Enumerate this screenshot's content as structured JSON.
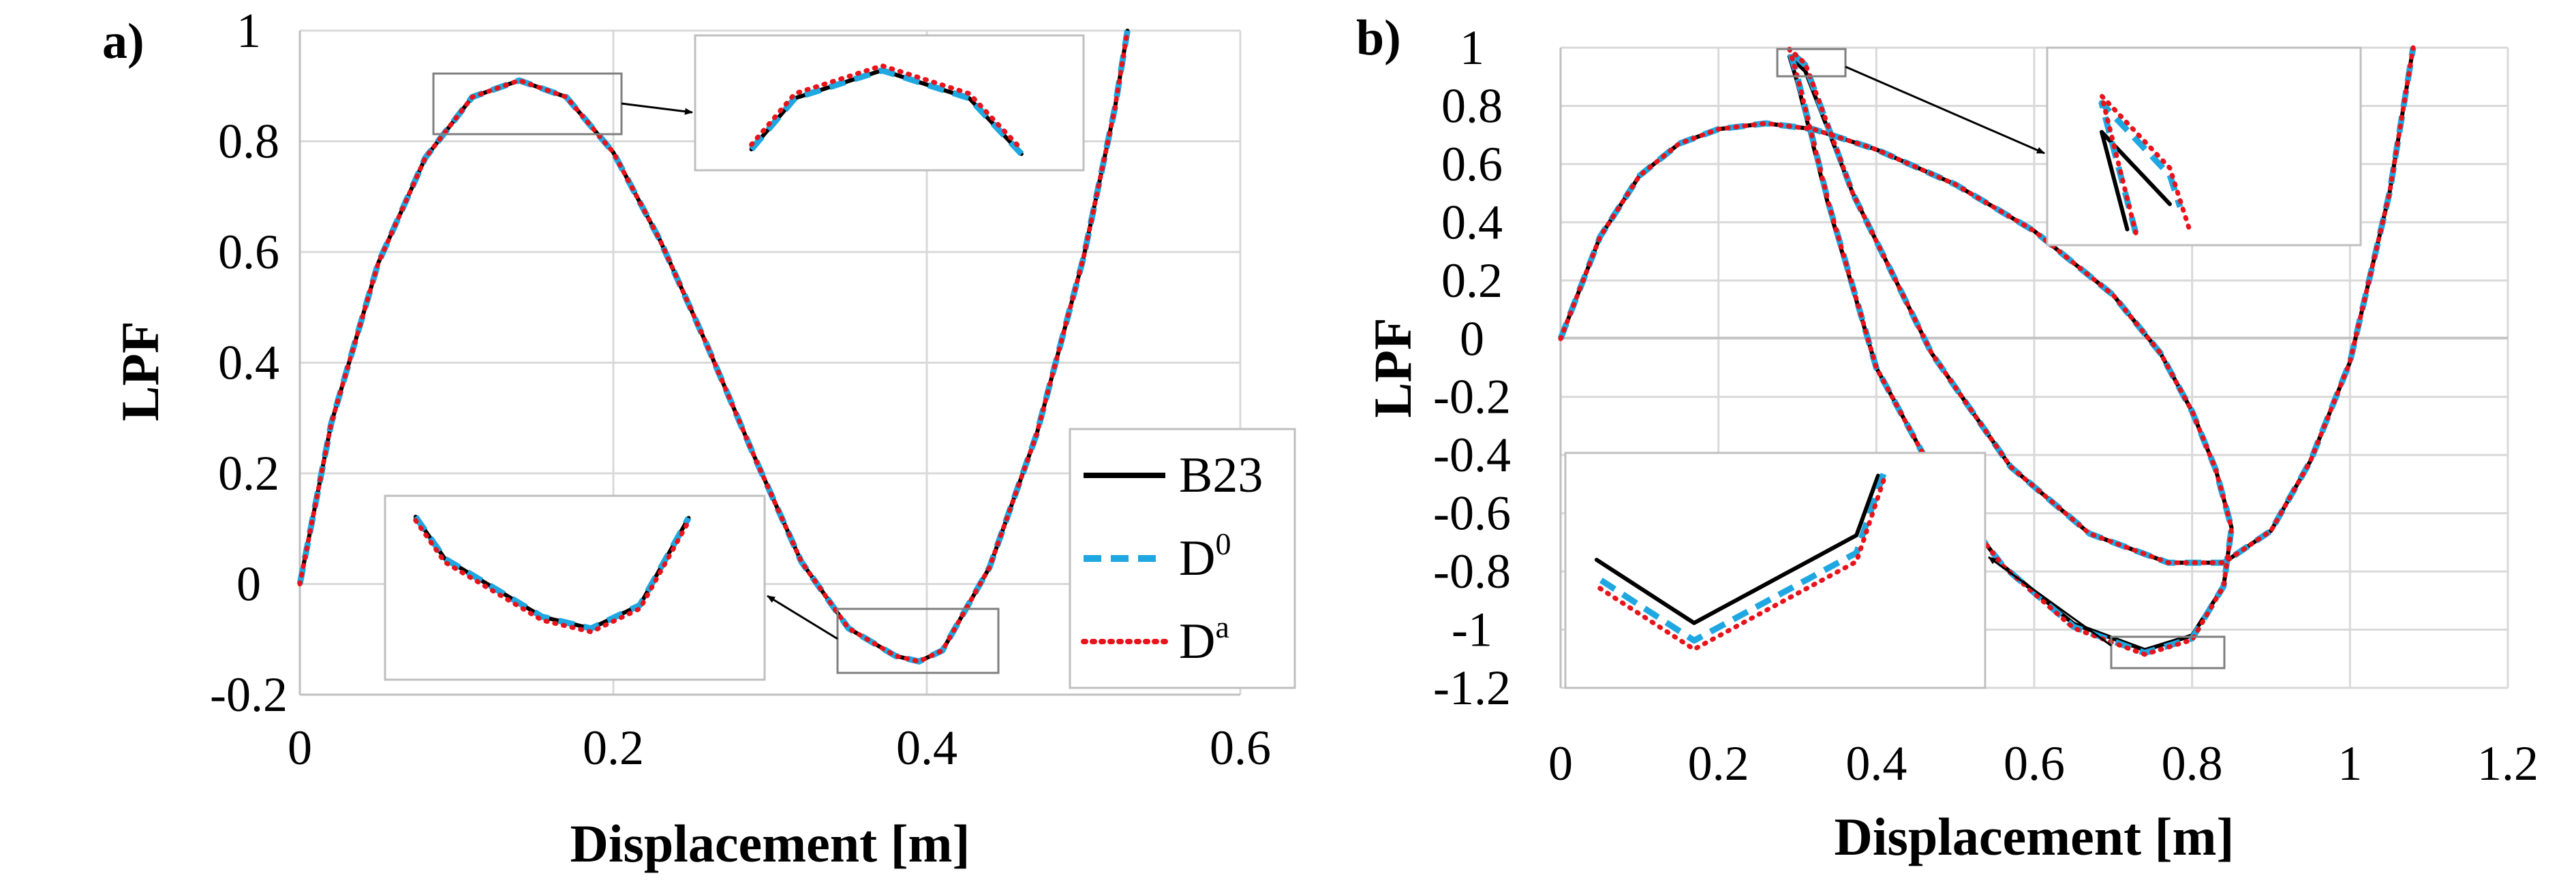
{
  "figure": {
    "description_free": true,
    "legend": [
      {
        "key": "B23",
        "label": "B23",
        "sup": "",
        "color": "#000000",
        "style": "solid"
      },
      {
        "key": "D0",
        "label": "D",
        "sup": "0",
        "color": "#1ea7e1",
        "style": "dashed"
      },
      {
        "key": "Da",
        "label": "D",
        "sup": "a",
        "color": "#e8131b",
        "style": "dotted"
      }
    ]
  },
  "chart_data": [
    {
      "panel_label": "a)",
      "type": "line",
      "xlabel": "Displacement  [m]",
      "ylabel": "LPF",
      "xlim": [
        0,
        0.6
      ],
      "ylim": [
        -0.2,
        1
      ],
      "xticks": [
        0,
        0.2,
        0.4,
        0.6
      ],
      "xtick_labels": [
        "0",
        "0.2",
        "0.4",
        "0.6"
      ],
      "yticks": [
        -0.2,
        0,
        0.2,
        0.4,
        0.6,
        0.8,
        1
      ],
      "ytick_labels": [
        "-0.2",
        "0",
        "0.2",
        "0.4",
        "0.6",
        "0.8",
        "1"
      ],
      "grid": true,
      "legend_position": "bottom-right",
      "series": [
        {
          "name": "B23",
          "x": [
            0,
            0.02,
            0.05,
            0.08,
            0.11,
            0.14,
            0.17,
            0.2,
            0.23,
            0.26,
            0.29,
            0.32,
            0.35,
            0.38,
            0.395,
            0.41,
            0.44,
            0.47,
            0.5,
            0.52,
            0.528
          ],
          "y": [
            0,
            0.29,
            0.58,
            0.77,
            0.88,
            0.91,
            0.88,
            0.78,
            0.62,
            0.43,
            0.23,
            0.04,
            -0.08,
            -0.13,
            -0.14,
            -0.12,
            0.03,
            0.27,
            0.59,
            0.86,
            1.0
          ]
        },
        {
          "name": "D0",
          "x": [
            0,
            0.02,
            0.05,
            0.08,
            0.11,
            0.14,
            0.17,
            0.2,
            0.23,
            0.26,
            0.29,
            0.32,
            0.35,
            0.38,
            0.395,
            0.41,
            0.44,
            0.47,
            0.5,
            0.52,
            0.528
          ],
          "y": [
            0,
            0.29,
            0.58,
            0.77,
            0.88,
            0.91,
            0.88,
            0.78,
            0.62,
            0.43,
            0.23,
            0.04,
            -0.08,
            -0.13,
            -0.14,
            -0.12,
            0.03,
            0.27,
            0.59,
            0.86,
            1.0
          ]
        },
        {
          "name": "Da",
          "x": [
            0,
            0.02,
            0.05,
            0.08,
            0.11,
            0.14,
            0.17,
            0.2,
            0.23,
            0.26,
            0.29,
            0.32,
            0.35,
            0.38,
            0.395,
            0.41,
            0.44,
            0.47,
            0.5,
            0.52,
            0.528
          ],
          "y": [
            0,
            0.29,
            0.58,
            0.77,
            0.88,
            0.91,
            0.88,
            0.78,
            0.62,
            0.43,
            0.23,
            0.04,
            -0.08,
            -0.13,
            -0.14,
            -0.12,
            0.03,
            0.27,
            0.59,
            0.86,
            1.0
          ]
        }
      ],
      "insets": [
        {
          "name": "peak",
          "region": {
            "x": [
              0.085,
              0.2
            ],
            "y": [
              0.82,
              0.93
            ]
          },
          "series_offsets": {
            "B23": 0,
            "D0": 0,
            "Da": 0.005
          }
        },
        {
          "name": "valley",
          "region": {
            "x": [
              0.34,
              0.44
            ],
            "y": [
              -0.17,
              -0.04
            ]
          },
          "series_offsets": {
            "B23": 0,
            "D0": 0,
            "Da": -0.003
          }
        }
      ]
    },
    {
      "panel_label": "b)",
      "type": "line",
      "xlabel": "Displacement  [m]",
      "ylabel": "LPF",
      "xlim": [
        0,
        1.2
      ],
      "ylim": [
        -1.2,
        1
      ],
      "xticks": [
        0,
        0.2,
        0.4,
        0.6,
        0.8,
        1,
        1.2
      ],
      "xtick_labels": [
        "0",
        "0.2",
        "0.4",
        "0.6",
        "0.8",
        "1",
        "1.2"
      ],
      "yticks": [
        -1.2,
        -1,
        -0.8,
        -0.6,
        -0.4,
        -0.2,
        0,
        0.2,
        0.4,
        0.6,
        0.8,
        1
      ],
      "ytick_labels": [
        "-1.2",
        "-1",
        "-0.8",
        "-0.6",
        "-0.4",
        "-0.2",
        "0",
        "0.2",
        "0.4",
        "0.6",
        "0.8",
        "1"
      ],
      "grid": true,
      "series": [
        {
          "name": "B23",
          "x": [
            0,
            0.05,
            0.1,
            0.15,
            0.2,
            0.26,
            0.32,
            0.4,
            0.5,
            0.6,
            0.7,
            0.76,
            0.8,
            0.83,
            0.85,
            0.84,
            0.8,
            0.74,
            0.65,
            0.56,
            0.48,
            0.4,
            0.34,
            0.3,
            0.29,
            0.31,
            0.37,
            0.47,
            0.57,
            0.67,
            0.77,
            0.84,
            0.9,
            0.95,
            1.0,
            1.05,
            1.08
          ],
          "y": [
            0,
            0.35,
            0.56,
            0.67,
            0.72,
            0.74,
            0.72,
            0.65,
            0.53,
            0.37,
            0.15,
            -0.05,
            -0.25,
            -0.45,
            -0.65,
            -0.85,
            -1.02,
            -1.07,
            -0.98,
            -0.78,
            -0.5,
            -0.1,
            0.45,
            0.88,
            0.97,
            0.92,
            0.5,
            -0.05,
            -0.44,
            -0.67,
            -0.77,
            -0.77,
            -0.66,
            -0.42,
            -0.08,
            0.5,
            1.0
          ]
        },
        {
          "name": "D0",
          "x": [
            0,
            0.05,
            0.1,
            0.15,
            0.2,
            0.26,
            0.32,
            0.4,
            0.5,
            0.6,
            0.7,
            0.76,
            0.8,
            0.83,
            0.85,
            0.84,
            0.8,
            0.74,
            0.65,
            0.56,
            0.48,
            0.4,
            0.34,
            0.3,
            0.29,
            0.31,
            0.37,
            0.47,
            0.57,
            0.67,
            0.77,
            0.84,
            0.9,
            0.95,
            1.0,
            1.05,
            1.08
          ],
          "y": [
            0,
            0.35,
            0.56,
            0.67,
            0.72,
            0.74,
            0.72,
            0.65,
            0.53,
            0.37,
            0.15,
            -0.05,
            -0.25,
            -0.45,
            -0.65,
            -0.85,
            -1.03,
            -1.08,
            -0.99,
            -0.78,
            -0.5,
            -0.1,
            0.46,
            0.9,
            0.99,
            0.94,
            0.5,
            -0.05,
            -0.44,
            -0.67,
            -0.77,
            -0.77,
            -0.66,
            -0.42,
            -0.08,
            0.5,
            1.0
          ]
        },
        {
          "name": "Da",
          "x": [
            0,
            0.05,
            0.1,
            0.15,
            0.2,
            0.26,
            0.32,
            0.4,
            0.5,
            0.6,
            0.7,
            0.76,
            0.8,
            0.83,
            0.85,
            0.84,
            0.8,
            0.74,
            0.65,
            0.56,
            0.48,
            0.4,
            0.34,
            0.3,
            0.29,
            0.31,
            0.37,
            0.47,
            0.57,
            0.67,
            0.77,
            0.84,
            0.9,
            0.95,
            1.0,
            1.05,
            1.08
          ],
          "y": [
            0,
            0.35,
            0.56,
            0.67,
            0.72,
            0.74,
            0.72,
            0.65,
            0.53,
            0.37,
            0.15,
            -0.05,
            -0.25,
            -0.45,
            -0.65,
            -0.85,
            -1.035,
            -1.085,
            -0.995,
            -0.78,
            -0.5,
            -0.1,
            0.46,
            0.9,
            0.995,
            0.945,
            0.5,
            -0.05,
            -0.44,
            -0.67,
            -0.77,
            -0.77,
            -0.66,
            -0.42,
            -0.08,
            0.5,
            1.0
          ]
        }
      ],
      "insets": [
        {
          "name": "peak",
          "region": {
            "x": [
              0.28,
              0.36
            ],
            "y": [
              0.9,
              1.02
            ]
          }
        },
        {
          "name": "valley",
          "region": {
            "x": [
              0.7,
              0.84
            ],
            "y": [
              -1.1,
              -0.98
            ]
          }
        }
      ]
    }
  ]
}
